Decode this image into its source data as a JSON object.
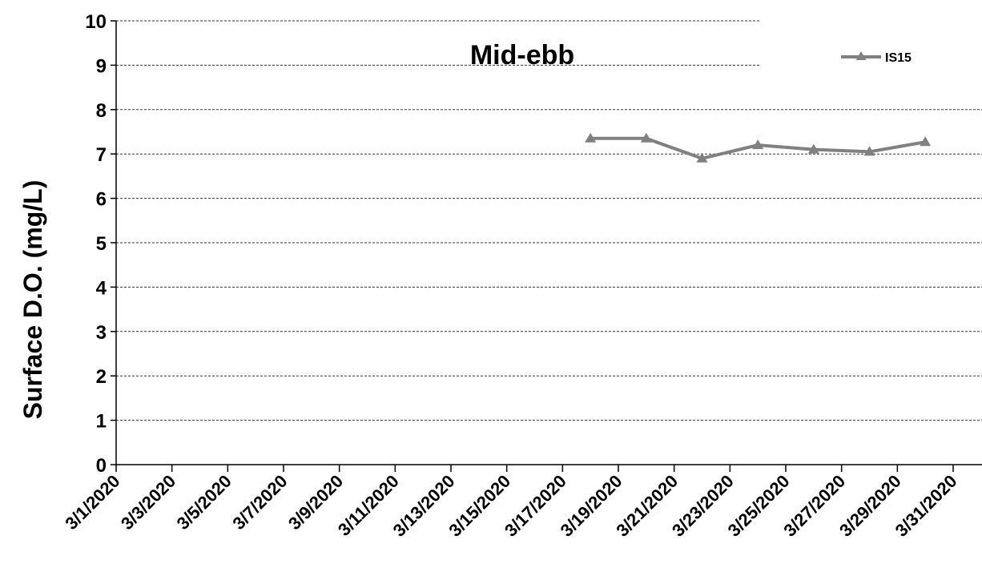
{
  "chart_data": {
    "type": "line",
    "title": "Mid-ebb",
    "xlabel": "",
    "ylabel": "Surface D.O. (mg/L)",
    "ylim": [
      0,
      10
    ],
    "yticks": [
      "0",
      "1",
      "2",
      "3",
      "4",
      "5",
      "6",
      "7",
      "8",
      "9",
      "10"
    ],
    "xlim": [
      "3/1/2020",
      "3/31/2020"
    ],
    "xticks": [
      "3/1/2020",
      "3/3/2020",
      "3/5/2020",
      "3/7/2020",
      "3/9/2020",
      "3/11/2020",
      "3/13/2020",
      "3/15/2020",
      "3/17/2020",
      "3/19/2020",
      "3/21/2020",
      "3/23/2020",
      "3/25/2020",
      "3/27/2020",
      "3/29/2020",
      "3/31/2020"
    ],
    "grid": "horizontal dashed",
    "legend": "top-right",
    "series": [
      {
        "name": "IS15",
        "color": "#808080",
        "marker": "triangle",
        "x": [
          "3/18/2020",
          "3/20/2020",
          "3/22/2020",
          "3/24/2020",
          "3/26/2020",
          "3/28/2020",
          "3/30/2020"
        ],
        "y": [
          7.35,
          7.35,
          6.9,
          7.2,
          7.1,
          7.05,
          7.27
        ]
      }
    ]
  }
}
